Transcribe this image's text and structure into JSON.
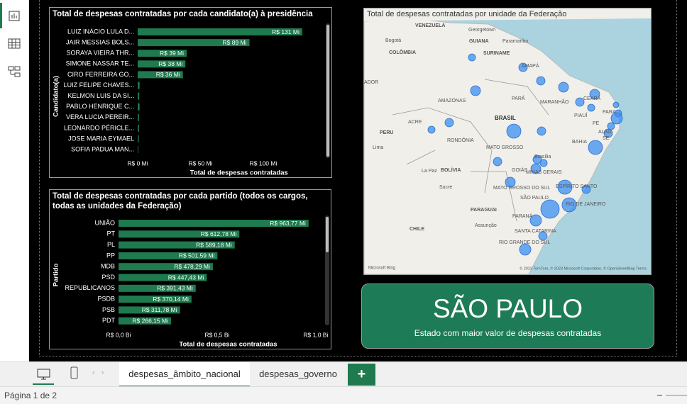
{
  "chart_data": [
    {
      "type": "bar",
      "orientation": "horizontal",
      "title": "Total de despesas contratadas por cada candidato(a) à presidência",
      "x_label": "Total de despesas contratadas",
      "y_label": "Candidato(a)",
      "categories": [
        "LUIZ INÁCIO LULA D...",
        "JAIR MESSIAS BOLS...",
        "SORAYA VIEIRA THR...",
        "SIMONE NASSAR TE...",
        "CIRO FERREIRA GO...",
        "LUIZ FELIPE CHAVES...",
        "KELMON LUIS DA SI...",
        "PABLO HENRIQUE C...",
        "VERA LUCIA PEREIR...",
        "LEONARDO PÉRICLE...",
        "JOSE MARIA EYMAEL",
        "SOFIA PADUA MAN..."
      ],
      "values": [
        131,
        89,
        39,
        38,
        36,
        1.5,
        1.2,
        1.5,
        1,
        1,
        0.8,
        0.5
      ],
      "value_labels": [
        "R$ 131 Mi",
        "R$ 89 Mi",
        "R$ 39 Mi",
        "R$ 38 Mi",
        "R$ 36 Mi",
        null,
        null,
        null,
        null,
        null,
        null,
        null
      ],
      "color": "#1f7a4f",
      "xlim": [
        0,
        150
      ],
      "xticks": [
        {
          "value": 0,
          "label": "R$ 0 Mi"
        },
        {
          "value": 50,
          "label": "R$ 50 Mi"
        },
        {
          "value": 100,
          "label": "R$ 100 Mi"
        }
      ]
    },
    {
      "type": "bar",
      "orientation": "horizontal",
      "title": "Total de despesas contratadas por cada partido (todos os cargos, todas as unidades da Federação)",
      "x_label": "Total de despesas contratadas",
      "y_label": "Partido",
      "categories": [
        "UNIÃO",
        "PT",
        "PL",
        "PP",
        "MDB",
        "PSD",
        "REPUBLICANOS",
        "PSDB",
        "PSB",
        "PDT"
      ],
      "values": [
        0.96377,
        0.61278,
        0.58918,
        0.50159,
        0.47829,
        0.44743,
        0.39143,
        0.37014,
        0.31178,
        0.26615
      ],
      "value_labels": [
        "R$ 963,77 Mi",
        "R$ 612,78 Mi",
        "R$ 589,18 Mi",
        "R$ 501,59 Mi",
        "R$ 478,29 Mi",
        "R$ 447,43 Mi",
        "R$ 391,43 Mi",
        "R$ 370,14 Mi",
        "R$ 311,78 Mi",
        "R$ 266,15 Mi"
      ],
      "color": "#1f7a4f",
      "xlim": [
        0,
        1.04
      ],
      "xticks": [
        {
          "value": 0,
          "label": "R$ 0,0 Bi"
        },
        {
          "value": 0.5,
          "label": "R$ 0,5 Bi"
        },
        {
          "value": 1.0,
          "label": "R$ 1,0 Bi"
        }
      ]
    }
  ],
  "map": {
    "title": "Total de despesas contratadas por unidade da Federação",
    "labels": [
      "VENEZUELA",
      "Georgetown",
      "Bogotá",
      "GUIANA",
      "Paramaribo",
      "COLÔMBIA",
      "SURINAME",
      "AMAPÁ",
      "ADOR",
      "AMAZONAS",
      "PARÁ",
      "MARANHÃO",
      "CEARÁ",
      "BRASIL",
      "PIAUÍ",
      "ACRE",
      "PERU",
      "RONDÔNIA",
      "MATO GROSSO",
      "BAHIA",
      "Lima",
      "Brasília",
      "BOLÍVIA",
      "La Paz",
      "GOIÁS",
      "MINAS GERAIS",
      "Sucre",
      "MATO GROSSO DO SUL",
      "ESPÍRITO SANTO",
      "SÃO PAULO",
      "PARAGUAI",
      "RIO DE JANEIRO",
      "PARANÁ",
      "CHILE",
      "Assunção",
      "SANTA CATARINA",
      "RIO GRANDE DO SUL",
      "PARA",
      "PE",
      "ALAG",
      "SE"
    ],
    "logo": "Microsoft Bing",
    "attribution": "© 2023 TomTom, © 2023 Microsoft Corporation, © OpenStreetMap  Terms"
  },
  "card": {
    "value": "SÃO PAULO",
    "caption": "Estado com maior valor de despesas contratadas"
  },
  "tabs": [
    "despesas_âmbito_nacional",
    "despesas_governo"
  ],
  "add_tab": "+",
  "status": "Página 1 de 2"
}
